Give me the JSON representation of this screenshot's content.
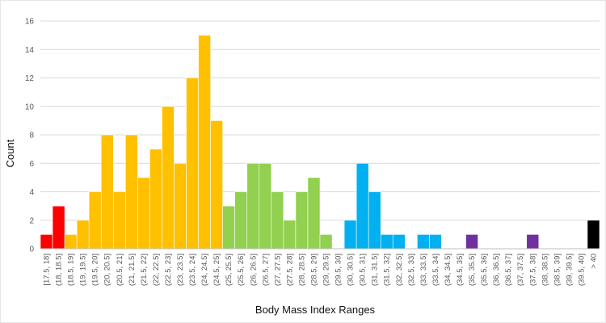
{
  "chart_data": {
    "type": "bar",
    "xlabel": "Body Mass Index Ranges",
    "ylabel": "Count",
    "ylim": [
      0,
      16
    ],
    "yticks": [
      0,
      2,
      4,
      6,
      8,
      10,
      12,
      14,
      16
    ],
    "grid": true,
    "bars_touch": true,
    "categories": [
      "[17.5, 18]",
      "(18, 18.5]",
      "(18.5, 19]",
      "(19, 19.5]",
      "(19.5, 20]",
      "(20, 20.5]",
      "(20.5, 21]",
      "(21, 21.5]",
      "(21.5, 22]",
      "(22, 22.5]",
      "(22.5, 23]",
      "(23, 23.5]",
      "(23.5, 24]",
      "(24, 24.5]",
      "(24.5, 25]",
      "(25, 25.5]",
      "(25.5, 26]",
      "(26, 26.5]",
      "(26.5, 27]",
      "(27, 27.5]",
      "(27.5, 28]",
      "(28, 28.5]",
      "(28.5, 29]",
      "(29, 29.5]",
      "(29.5, 30]",
      "(30, 30.5]",
      "(30.5, 31]",
      "(31, 31.5]",
      "(31.5, 32]",
      "(32, 32.5]",
      "(32.5, 33]",
      "(33, 33.5]",
      "(33.5, 34]",
      "(34, 34.5]",
      "(34.5, 35]",
      "(35, 35.5]",
      "(35.5, 36]",
      "(36, 36.5]",
      "(36.5, 37]",
      "(37, 37.5]",
      "(37.5, 38]",
      "(38, 38.5]",
      "(38.5, 39]",
      "(39, 39.5]",
      "(39.5, 40]",
      "> 40"
    ],
    "values": [
      1,
      3,
      1,
      2,
      4,
      8,
      4,
      8,
      5,
      7,
      10,
      6,
      12,
      15,
      9,
      3,
      4,
      6,
      6,
      4,
      2,
      4,
      5,
      1,
      0,
      2,
      6,
      4,
      1,
      1,
      0,
      1,
      1,
      0,
      0,
      1,
      0,
      0,
      0,
      0,
      1,
      0,
      0,
      0,
      0,
      2
    ],
    "bar_colors": [
      "#ff0000",
      "#ff0000",
      "#ffc000",
      "#ffc000",
      "#ffc000",
      "#ffc000",
      "#ffc000",
      "#ffc000",
      "#ffc000",
      "#ffc000",
      "#ffc000",
      "#ffc000",
      "#ffc000",
      "#ffc000",
      "#ffc000",
      "#92d050",
      "#92d050",
      "#92d050",
      "#92d050",
      "#92d050",
      "#92d050",
      "#92d050",
      "#92d050",
      "#92d050",
      "#92d050",
      "#00b0f0",
      "#00b0f0",
      "#00b0f0",
      "#00b0f0",
      "#00b0f0",
      "#00b0f0",
      "#00b0f0",
      "#00b0f0",
      "#00b0f0",
      "#00b0f0",
      "#7030a0",
      "#7030a0",
      "#7030a0",
      "#7030a0",
      "#7030a0",
      "#7030a0",
      "#7030a0",
      "#7030a0",
      "#7030a0",
      "#7030a0",
      "#000000"
    ],
    "colors": {
      "grid": "#d9d9d9",
      "bar_edge": "#ffffff"
    }
  }
}
